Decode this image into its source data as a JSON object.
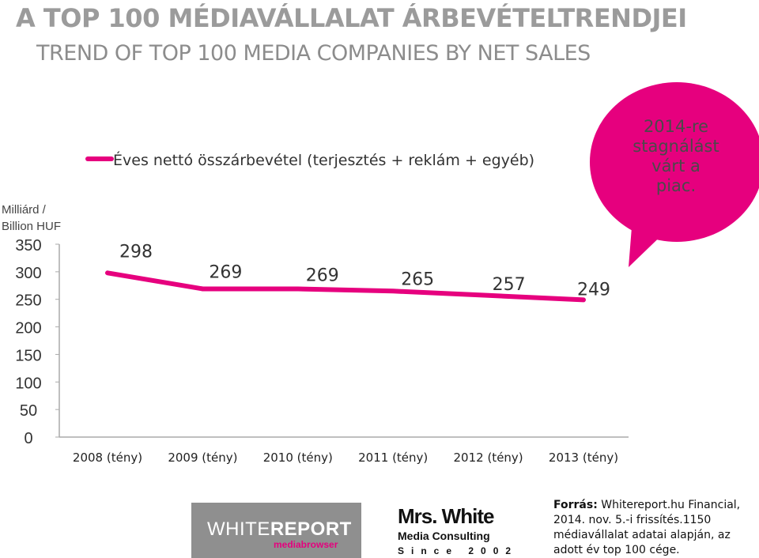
{
  "title": "A TOP 100 MÉDIAVÁLLALAT ÁRBEVÉTELTRENDJEI",
  "subtitle": "TREND OF TOP 100 MEDIA COMPANIES BY NET SALES",
  "unit_label_1": "Milliárd /",
  "unit_label_2": "Billion HUF",
  "callout": {
    "lines": [
      "2014-re",
      "stagnálást",
      "várt a",
      "piac."
    ]
  },
  "chart_data": {
    "type": "line",
    "categories": [
      "2008 (tény)",
      "2009 (tény)",
      "2010 (tény)",
      "2011 (tény)",
      "2012 (tény)",
      "2013 (tény)"
    ],
    "series": [
      {
        "name": "Éves nettó összárbevétel (terjesztés + reklám + egyéb)",
        "values": [
          298,
          269,
          269,
          265,
          257,
          249
        ]
      }
    ],
    "data_labels": [
      "298",
      "269",
      "269",
      "265",
      "257",
      "249"
    ],
    "yticks": [
      0,
      50,
      100,
      150,
      200,
      250,
      300,
      350
    ],
    "ylim": [
      0,
      350
    ],
    "ylabel": "Milliárd / Billion HUF",
    "legend_position": "top",
    "grid": false,
    "line_color": "#e6007e"
  },
  "logos": {
    "whitereport_a": "WHITE",
    "whitereport_b": "REPORT",
    "whitereport_sub": "mediabrowser",
    "mrswhite_main": "Mrs. White",
    "mrswhite_sub": "Media Consulting",
    "mrswhite_since": "Since 2002"
  },
  "source": {
    "label": "Forrás:",
    "text": "Whitereport.hu Financial, 2014. nov. 5.-i frissítés.1150 médiavállalat adatai alapján, az adott év top 100 cége."
  }
}
